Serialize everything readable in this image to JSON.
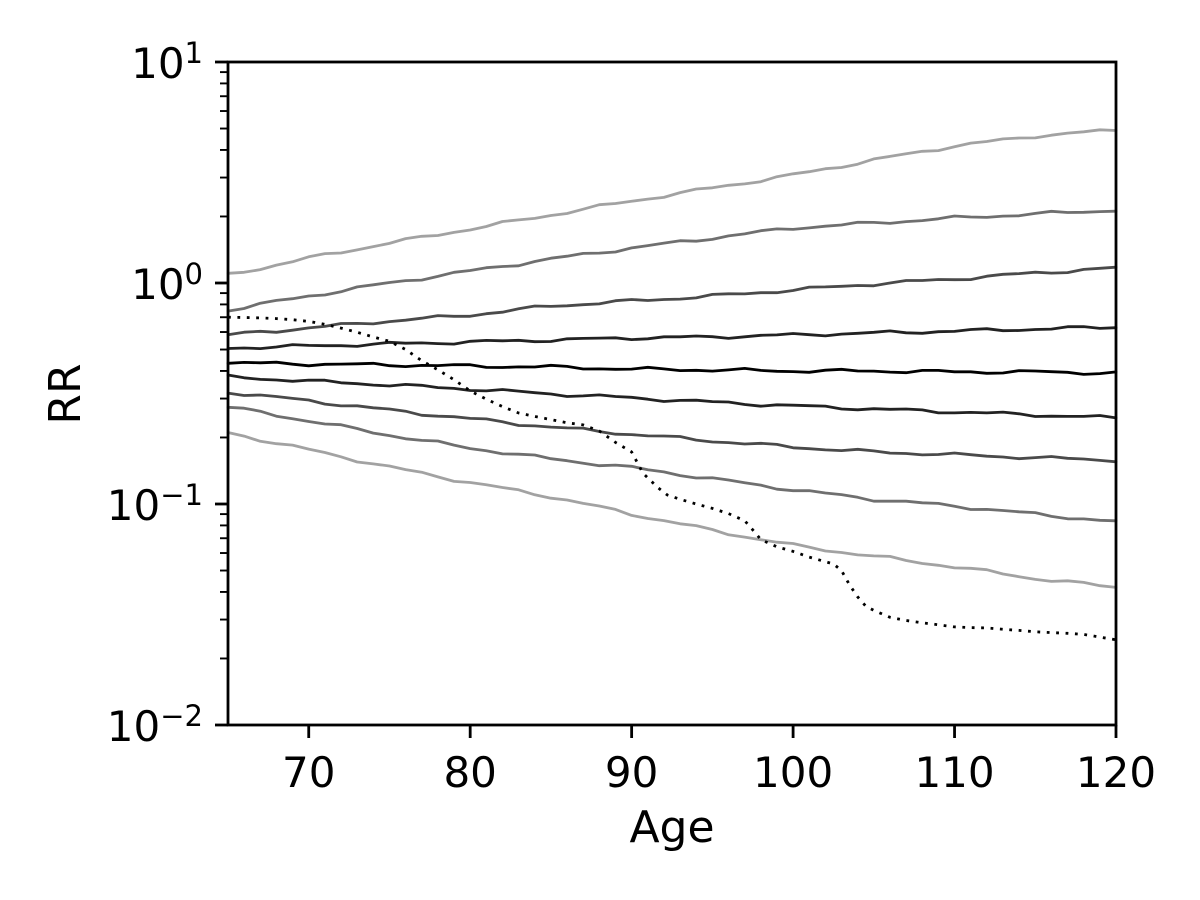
{
  "figure": {
    "background": "#ffffff",
    "text_color": "#000000",
    "spine_color": "#000000"
  },
  "chart_data": {
    "type": "line",
    "title": "",
    "xlabel": "Age",
    "ylabel": "RR",
    "grid": false,
    "legend": null,
    "x_axis": {
      "scale": "linear",
      "min": 65,
      "max": 120,
      "ticks": [
        {
          "value": 70,
          "label": "70"
        },
        {
          "value": 80,
          "label": "80"
        },
        {
          "value": 90,
          "label": "90"
        },
        {
          "value": 100,
          "label": "100"
        },
        {
          "value": 110,
          "label": "110"
        },
        {
          "value": 120,
          "label": "120"
        }
      ]
    },
    "y_axis": {
      "scale": "log",
      "min": 0.01,
      "max": 10,
      "ticks": [
        {
          "exp": 1,
          "base": "10",
          "sup": "1"
        },
        {
          "exp": 0,
          "base": "10",
          "sup": "0"
        },
        {
          "exp": -1,
          "base": "10",
          "sup": "−1"
        },
        {
          "exp": -2,
          "base": "10",
          "sup": "−2"
        }
      ]
    },
    "series": [
      {
        "id": "solid-1-top-lightest",
        "style": "solid",
        "color": "#a2a2a2",
        "points": [
          [
            65,
            1.087
          ],
          [
            70,
            1.297
          ],
          [
            75,
            1.517
          ],
          [
            80,
            1.755
          ],
          [
            85,
            2.032
          ],
          [
            90,
            2.35
          ],
          [
            95,
            2.69
          ],
          [
            100,
            3.081
          ],
          [
            105,
            3.602
          ],
          [
            110,
            4.168
          ],
          [
            115,
            4.626
          ],
          [
            120,
            4.923
          ]
        ]
      },
      {
        "id": "solid-2",
        "style": "solid",
        "color": "#6f6f6f",
        "points": [
          [
            65,
            0.755
          ],
          [
            70,
            0.873
          ],
          [
            75,
            1.0
          ],
          [
            80,
            1.133
          ],
          [
            85,
            1.284
          ],
          [
            90,
            1.44
          ],
          [
            95,
            1.598
          ],
          [
            100,
            1.774
          ],
          [
            105,
            1.868
          ],
          [
            110,
            1.969
          ],
          [
            115,
            2.052
          ],
          [
            120,
            2.139
          ]
        ]
      },
      {
        "id": "solid-3",
        "style": "solid",
        "color": "#4a4a4a",
        "points": [
          [
            65,
            0.582
          ],
          [
            70,
            0.626
          ],
          [
            75,
            0.673
          ],
          [
            80,
            0.716
          ],
          [
            85,
            0.787
          ],
          [
            90,
            0.829
          ],
          [
            95,
            0.873
          ],
          [
            100,
            0.93
          ],
          [
            105,
            0.99
          ],
          [
            110,
            1.043
          ],
          [
            115,
            1.11
          ],
          [
            120,
            1.169
          ]
        ]
      },
      {
        "id": "solid-4",
        "style": "solid",
        "color": "#222222",
        "points": [
          [
            65,
            0.508
          ],
          [
            70,
            0.519
          ],
          [
            75,
            0.53
          ],
          [
            80,
            0.541
          ],
          [
            85,
            0.552
          ],
          [
            90,
            0.564
          ],
          [
            95,
            0.57
          ],
          [
            100,
            0.582
          ],
          [
            105,
            0.594
          ],
          [
            110,
            0.606
          ],
          [
            115,
            0.619
          ],
          [
            120,
            0.632
          ]
        ]
      },
      {
        "id": "solid-5-median-black",
        "style": "solid",
        "color": "#000000",
        "points": [
          [
            65,
            0.435
          ],
          [
            70,
            0.43
          ],
          [
            75,
            0.426
          ],
          [
            80,
            0.421
          ],
          [
            85,
            0.417
          ],
          [
            90,
            0.408
          ],
          [
            95,
            0.404
          ],
          [
            100,
            0.4
          ],
          [
            105,
            0.4
          ],
          [
            110,
            0.396
          ],
          [
            115,
            0.396
          ],
          [
            120,
            0.391
          ]
        ]
      },
      {
        "id": "solid-6",
        "style": "solid",
        "color": "#222222",
        "points": [
          [
            65,
            0.376
          ],
          [
            70,
            0.36
          ],
          [
            75,
            0.346
          ],
          [
            80,
            0.331
          ],
          [
            85,
            0.315
          ],
          [
            90,
            0.302
          ],
          [
            95,
            0.289
          ],
          [
            100,
            0.278
          ],
          [
            105,
            0.269
          ],
          [
            110,
            0.261
          ],
          [
            115,
            0.253
          ],
          [
            120,
            0.245
          ]
        ]
      },
      {
        "id": "solid-7",
        "style": "solid",
        "color": "#4a4a4a",
        "points": [
          [
            65,
            0.321
          ],
          [
            70,
            0.293
          ],
          [
            75,
            0.266
          ],
          [
            80,
            0.243
          ],
          [
            85,
            0.223
          ],
          [
            90,
            0.207
          ],
          [
            95,
            0.193
          ],
          [
            100,
            0.181
          ],
          [
            105,
            0.172
          ],
          [
            110,
            0.167
          ],
          [
            115,
            0.162
          ],
          [
            120,
            0.158
          ]
        ]
      },
      {
        "id": "solid-8",
        "style": "solid",
        "color": "#6f6f6f",
        "points": [
          [
            65,
            0.275
          ],
          [
            70,
            0.238
          ],
          [
            75,
            0.205
          ],
          [
            80,
            0.179
          ],
          [
            85,
            0.16
          ],
          [
            90,
            0.146
          ],
          [
            95,
            0.13
          ],
          [
            100,
            0.116
          ],
          [
            105,
            0.105
          ],
          [
            110,
            0.098
          ],
          [
            115,
            0.09
          ],
          [
            120,
            0.083
          ]
        ]
      },
      {
        "id": "solid-9-bottom-lightest",
        "style": "solid",
        "color": "#a2a2a2",
        "points": [
          [
            65,
            0.21
          ],
          [
            70,
            0.176
          ],
          [
            75,
            0.147
          ],
          [
            80,
            0.125
          ],
          [
            85,
            0.108
          ],
          [
            90,
            0.09
          ],
          [
            95,
            0.076
          ],
          [
            100,
            0.065
          ],
          [
            105,
            0.058
          ],
          [
            110,
            0.052
          ],
          [
            115,
            0.046
          ],
          [
            120,
            0.042
          ]
        ]
      },
      {
        "id": "dotted-observed",
        "style": "dotted",
        "color": "#000000",
        "points": [
          [
            65,
            0.7
          ],
          [
            66,
            0.698
          ],
          [
            67,
            0.695
          ],
          [
            68,
            0.69
          ],
          [
            69,
            0.682
          ],
          [
            70,
            0.67
          ],
          [
            71,
            0.65
          ],
          [
            72,
            0.625
          ],
          [
            73,
            0.598
          ],
          [
            74,
            0.57
          ],
          [
            75,
            0.545
          ],
          [
            76,
            0.5
          ],
          [
            77,
            0.445
          ],
          [
            78,
            0.405
          ],
          [
            79,
            0.365
          ],
          [
            80,
            0.325
          ],
          [
            81,
            0.298
          ],
          [
            82,
            0.276
          ],
          [
            83,
            0.258
          ],
          [
            84,
            0.249
          ],
          [
            85,
            0.241
          ],
          [
            86,
            0.233
          ],
          [
            87,
            0.228
          ],
          [
            88,
            0.214
          ],
          [
            89,
            0.19
          ],
          [
            90,
            0.172
          ],
          [
            90.7,
            0.138
          ],
          [
            91.6,
            0.119
          ],
          [
            92.2,
            0.11
          ],
          [
            93,
            0.105
          ],
          [
            94,
            0.1
          ],
          [
            95,
            0.0955
          ],
          [
            96,
            0.0905
          ],
          [
            97,
            0.084
          ],
          [
            97.6,
            0.075
          ],
          [
            98,
            0.069
          ],
          [
            99,
            0.064
          ],
          [
            100,
            0.061
          ],
          [
            101,
            0.0575
          ],
          [
            102,
            0.0548
          ],
          [
            102.5,
            0.0535
          ],
          [
            103,
            0.05
          ],
          [
            103.5,
            0.043
          ],
          [
            104,
            0.038
          ],
          [
            104.5,
            0.0345
          ],
          [
            105,
            0.033
          ],
          [
            106,
            0.0307
          ],
          [
            107,
            0.0297
          ],
          [
            108,
            0.029
          ],
          [
            109,
            0.0284
          ],
          [
            110,
            0.0278
          ],
          [
            111,
            0.0276
          ],
          [
            112,
            0.0275
          ],
          [
            113,
            0.0271
          ],
          [
            114,
            0.0268
          ],
          [
            115,
            0.0264
          ],
          [
            116,
            0.0262
          ],
          [
            117,
            0.026
          ],
          [
            118,
            0.0257
          ],
          [
            119,
            0.025
          ],
          [
            120,
            0.0243
          ]
        ]
      }
    ]
  }
}
